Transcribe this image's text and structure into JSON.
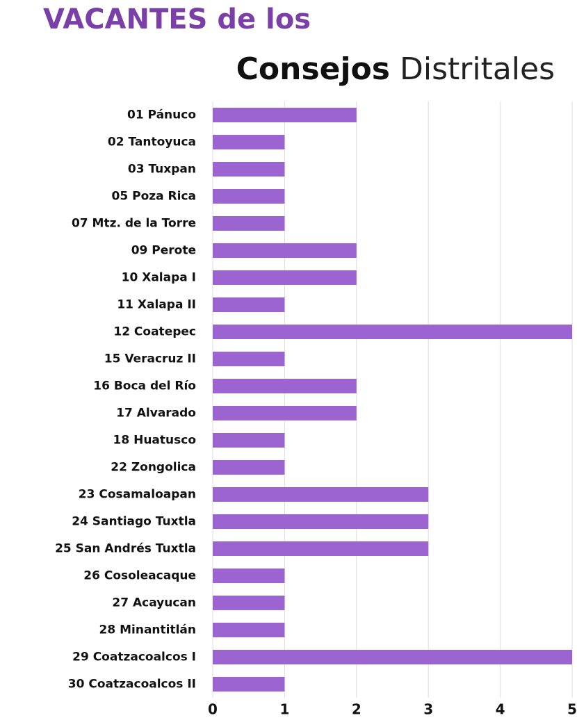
{
  "chart_data": {
    "type": "bar",
    "orientation": "horizontal",
    "title": "VACANTES de los",
    "subtitle": [
      "Consejos",
      "Distritales"
    ],
    "categories": [
      "01 Pánuco",
      "02 Tantoyuca",
      "03 Tuxpan",
      "05 Poza Rica",
      "07 Mtz. de la Torre",
      "09 Perote",
      "10 Xalapa I",
      "11 Xalapa II",
      "12 Coatepec",
      "15 Veracruz II",
      "16 Boca del Río",
      "17 Alvarado",
      "18 Huatusco",
      "22 Zongolica",
      "23 Cosamaloapan",
      "24 Santiago Tuxtla",
      "25 San Andrés Tuxtla",
      "26 Cosoleacaque",
      "27 Acayucan",
      "28 Minantitlán",
      "29 Coatzacoalcos I",
      "30 Coatzacoalcos II"
    ],
    "values": [
      2,
      1,
      1,
      1,
      1,
      2,
      2,
      1,
      5,
      1,
      2,
      2,
      1,
      1,
      3,
      3,
      3,
      1,
      1,
      1,
      5,
      1
    ],
    "color": "#9c64d0",
    "xlim": [
      0,
      5
    ],
    "xticks": [
      0,
      1,
      2,
      3,
      4,
      5
    ],
    "grid": true
  }
}
